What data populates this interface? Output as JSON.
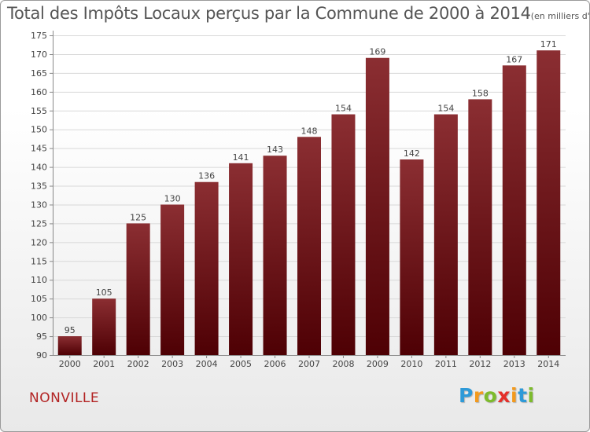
{
  "title": "Total des Impôts Locaux perçus par la Commune de 2000 à 2014",
  "subtitle": "(en milliers d'€)",
  "commune": "NONVILLE",
  "logo_letters": [
    "P",
    "r",
    "o",
    "x",
    "i",
    "t",
    "i"
  ],
  "logo_colors": [
    "#2e9ad8",
    "#f39a1d",
    "#7dbb2c",
    "#e5302a",
    "#f39a1d",
    "#2e9ad8",
    "#7dbb2c"
  ],
  "bar_color_top": "#8b2e32",
  "bar_color_bottom": "#4e0004",
  "chart_data": {
    "type": "bar",
    "title": "Total des Impôts Locaux perçus par la Commune de 2000 à 2014",
    "ylabel": "(en milliers d'€)",
    "xlabel": "",
    "categories": [
      "2000",
      "2001",
      "2002",
      "2003",
      "2004",
      "2005",
      "2006",
      "2007",
      "2008",
      "2009",
      "2010",
      "2011",
      "2012",
      "2013",
      "2014"
    ],
    "values": [
      95,
      105,
      125,
      130,
      136,
      141,
      143,
      148,
      154,
      169,
      142,
      154,
      158,
      167,
      171
    ],
    "ylim": [
      90,
      175
    ],
    "yticks": [
      90,
      95,
      100,
      105,
      110,
      115,
      120,
      125,
      130,
      135,
      140,
      145,
      150,
      155,
      160,
      165,
      170,
      175
    ],
    "grid": "horizontal"
  }
}
